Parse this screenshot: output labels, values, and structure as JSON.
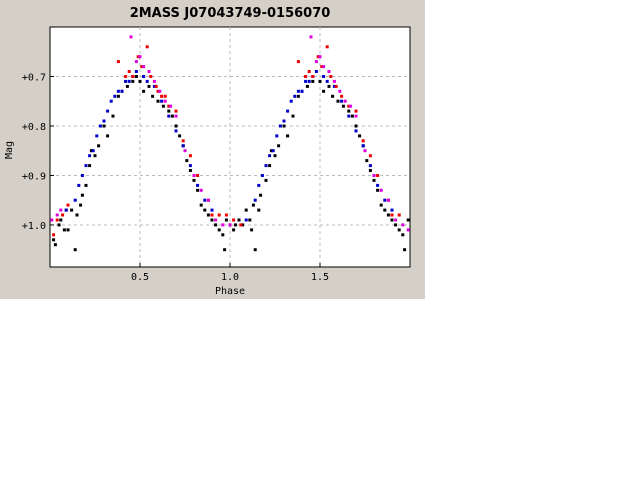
{
  "chart_data": {
    "type": "scatter",
    "title": "2MASS J07043749-0156070",
    "xlabel": "Phase",
    "ylabel": "Mag",
    "xlim": [
      0.0,
      2.0
    ],
    "ylim": [
      1.085,
      0.6
    ],
    "y_inverted": true,
    "grid": true,
    "x_ticks": [
      {
        "value": 0.5,
        "label": "0.5"
      },
      {
        "value": 1.0,
        "label": "1.0"
      },
      {
        "value": 1.5,
        "label": "1.5"
      }
    ],
    "y_ticks": [
      {
        "value": 0.7,
        "label": "+0.7"
      },
      {
        "value": 0.8,
        "label": "+0.8"
      },
      {
        "value": 0.9,
        "label": "+0.9"
      },
      {
        "value": 1.0,
        "label": "+1.0"
      }
    ],
    "series": [
      {
        "color": "#000000",
        "points": [
          [
            0.02,
            1.03
          ],
          [
            0.03,
            1.04
          ],
          [
            0.05,
            1.0
          ],
          [
            0.06,
            0.99
          ],
          [
            0.08,
            1.01
          ],
          [
            0.09,
            0.97
          ],
          [
            0.1,
            1.01
          ],
          [
            0.12,
            0.97
          ],
          [
            0.14,
            1.05
          ],
          [
            0.15,
            0.98
          ],
          [
            0.17,
            0.96
          ],
          [
            0.18,
            0.94
          ],
          [
            0.2,
            0.92
          ],
          [
            0.22,
            0.88
          ],
          [
            0.23,
            0.85
          ],
          [
            0.25,
            0.86
          ],
          [
            0.27,
            0.84
          ],
          [
            0.3,
            0.8
          ],
          [
            0.32,
            0.82
          ],
          [
            0.35,
            0.78
          ],
          [
            0.38,
            0.74
          ],
          [
            0.4,
            0.73
          ],
          [
            0.43,
            0.72
          ],
          [
            0.46,
            0.71
          ],
          [
            0.48,
            0.7
          ],
          [
            0.5,
            0.71
          ],
          [
            0.52,
            0.73
          ],
          [
            0.55,
            0.72
          ],
          [
            0.57,
            0.74
          ],
          [
            0.6,
            0.75
          ],
          [
            0.63,
            0.76
          ],
          [
            0.66,
            0.77
          ],
          [
            0.68,
            0.78
          ],
          [
            0.7,
            0.8
          ],
          [
            0.72,
            0.82
          ],
          [
            0.74,
            0.84
          ],
          [
            0.76,
            0.87
          ],
          [
            0.78,
            0.89
          ],
          [
            0.8,
            0.91
          ],
          [
            0.82,
            0.93
          ],
          [
            0.84,
            0.96
          ],
          [
            0.86,
            0.97
          ],
          [
            0.88,
            0.98
          ],
          [
            0.9,
            0.99
          ],
          [
            0.92,
            1.0
          ],
          [
            0.94,
            1.01
          ],
          [
            0.96,
            1.02
          ],
          [
            0.97,
            1.05
          ],
          [
            0.98,
            0.99
          ],
          [
            1.0,
            1.0
          ],
          [
            1.02,
            1.01
          ],
          [
            1.03,
            1.0
          ],
          [
            1.05,
            0.99
          ],
          [
            1.07,
            1.0
          ],
          [
            1.09,
            0.97
          ],
          [
            1.11,
            0.99
          ],
          [
            1.12,
            1.01
          ],
          [
            1.13,
            0.96
          ],
          [
            1.14,
            1.05
          ],
          [
            1.16,
            0.97
          ],
          [
            1.17,
            0.94
          ],
          [
            1.2,
            0.91
          ],
          [
            1.22,
            0.88
          ],
          [
            1.23,
            0.85
          ],
          [
            1.25,
            0.86
          ],
          [
            1.27,
            0.84
          ],
          [
            1.3,
            0.8
          ],
          [
            1.32,
            0.82
          ],
          [
            1.35,
            0.78
          ],
          [
            1.38,
            0.74
          ],
          [
            1.4,
            0.73
          ],
          [
            1.43,
            0.72
          ],
          [
            1.46,
            0.71
          ],
          [
            1.5,
            0.71
          ],
          [
            1.52,
            0.73
          ],
          [
            1.55,
            0.72
          ],
          [
            1.57,
            0.74
          ],
          [
            1.6,
            0.75
          ],
          [
            1.63,
            0.76
          ],
          [
            1.66,
            0.77
          ],
          [
            1.68,
            0.78
          ],
          [
            1.7,
            0.8
          ],
          [
            1.72,
            0.82
          ],
          [
            1.74,
            0.84
          ],
          [
            1.76,
            0.87
          ],
          [
            1.78,
            0.89
          ],
          [
            1.8,
            0.91
          ],
          [
            1.82,
            0.93
          ],
          [
            1.84,
            0.96
          ],
          [
            1.86,
            0.97
          ],
          [
            1.88,
            0.98
          ],
          [
            1.9,
            0.99
          ],
          [
            1.92,
            1.0
          ],
          [
            1.94,
            1.01
          ],
          [
            1.96,
            1.02
          ],
          [
            1.97,
            1.05
          ],
          [
            1.99,
            0.99
          ]
        ]
      },
      {
        "color": "#0000cc",
        "points": [
          [
            0.09,
            0.97
          ],
          [
            0.14,
            0.95
          ],
          [
            0.16,
            0.92
          ],
          [
            0.18,
            0.9
          ],
          [
            0.2,
            0.88
          ],
          [
            0.22,
            0.86
          ],
          [
            0.24,
            0.85
          ],
          [
            0.26,
            0.82
          ],
          [
            0.28,
            0.8
          ],
          [
            0.3,
            0.79
          ],
          [
            0.32,
            0.77
          ],
          [
            0.34,
            0.75
          ],
          [
            0.36,
            0.74
          ],
          [
            0.38,
            0.73
          ],
          [
            0.4,
            0.73
          ],
          [
            0.42,
            0.71
          ],
          [
            0.44,
            0.71
          ],
          [
            0.46,
            0.7
          ],
          [
            0.48,
            0.69
          ],
          [
            0.52,
            0.7
          ],
          [
            0.54,
            0.71
          ],
          [
            0.58,
            0.72
          ],
          [
            0.62,
            0.75
          ],
          [
            0.66,
            0.78
          ],
          [
            0.7,
            0.81
          ],
          [
            0.74,
            0.84
          ],
          [
            0.78,
            0.88
          ],
          [
            0.82,
            0.92
          ],
          [
            0.86,
            0.95
          ],
          [
            0.9,
            0.97
          ],
          [
            1.09,
            0.99
          ],
          [
            1.14,
            0.95
          ],
          [
            1.16,
            0.92
          ],
          [
            1.18,
            0.9
          ],
          [
            1.2,
            0.88
          ],
          [
            1.22,
            0.86
          ],
          [
            1.24,
            0.85
          ],
          [
            1.26,
            0.82
          ],
          [
            1.28,
            0.8
          ],
          [
            1.3,
            0.79
          ],
          [
            1.32,
            0.77
          ],
          [
            1.34,
            0.75
          ],
          [
            1.36,
            0.74
          ],
          [
            1.38,
            0.73
          ],
          [
            1.4,
            0.73
          ],
          [
            1.42,
            0.71
          ],
          [
            1.44,
            0.71
          ],
          [
            1.46,
            0.7
          ],
          [
            1.48,
            0.69
          ],
          [
            1.52,
            0.7
          ],
          [
            1.54,
            0.71
          ],
          [
            1.58,
            0.72
          ],
          [
            1.62,
            0.75
          ],
          [
            1.66,
            0.78
          ],
          [
            1.7,
            0.81
          ],
          [
            1.74,
            0.84
          ],
          [
            1.78,
            0.88
          ],
          [
            1.82,
            0.92
          ],
          [
            1.86,
            0.95
          ],
          [
            1.9,
            0.97
          ]
        ]
      },
      {
        "color": "#ee0000",
        "points": [
          [
            0.02,
            1.02
          ],
          [
            0.04,
            0.99
          ],
          [
            0.07,
            0.98
          ],
          [
            0.1,
            0.96
          ],
          [
            0.38,
            0.67
          ],
          [
            0.42,
            0.7
          ],
          [
            0.44,
            0.69
          ],
          [
            0.46,
            0.7
          ],
          [
            0.49,
            0.66
          ],
          [
            0.51,
            0.68
          ],
          [
            0.54,
            0.64
          ],
          [
            0.56,
            0.7
          ],
          [
            0.59,
            0.72
          ],
          [
            0.6,
            0.73
          ],
          [
            0.62,
            0.74
          ],
          [
            0.64,
            0.74
          ],
          [
            0.66,
            0.76
          ],
          [
            0.7,
            0.77
          ],
          [
            0.74,
            0.83
          ],
          [
            0.78,
            0.86
          ],
          [
            0.82,
            0.9
          ],
          [
            0.88,
            0.95
          ],
          [
            0.9,
            0.98
          ],
          [
            0.94,
            0.98
          ],
          [
            0.98,
            0.98
          ],
          [
            1.02,
            0.99
          ],
          [
            1.06,
            1.0
          ],
          [
            1.38,
            0.67
          ],
          [
            1.42,
            0.7
          ],
          [
            1.44,
            0.69
          ],
          [
            1.46,
            0.7
          ],
          [
            1.49,
            0.66
          ],
          [
            1.51,
            0.68
          ],
          [
            1.54,
            0.64
          ],
          [
            1.56,
            0.7
          ],
          [
            1.59,
            0.72
          ],
          [
            1.62,
            0.74
          ],
          [
            1.66,
            0.76
          ],
          [
            1.7,
            0.77
          ],
          [
            1.74,
            0.83
          ],
          [
            1.78,
            0.86
          ],
          [
            1.82,
            0.9
          ],
          [
            1.88,
            0.95
          ],
          [
            1.9,
            0.98
          ],
          [
            1.94,
            0.98
          ]
        ]
      },
      {
        "color": "#dd00dd",
        "points": [
          [
            0.01,
            0.99
          ],
          [
            0.04,
            0.98
          ],
          [
            0.06,
            0.97
          ],
          [
            0.45,
            0.62
          ],
          [
            0.48,
            0.67
          ],
          [
            0.5,
            0.66
          ],
          [
            0.52,
            0.68
          ],
          [
            0.55,
            0.69
          ],
          [
            0.58,
            0.71
          ],
          [
            0.61,
            0.73
          ],
          [
            0.64,
            0.75
          ],
          [
            0.67,
            0.76
          ],
          [
            0.7,
            0.78
          ],
          [
            0.75,
            0.85
          ],
          [
            0.8,
            0.9
          ],
          [
            0.84,
            0.93
          ],
          [
            0.88,
            0.95
          ],
          [
            0.92,
            0.99
          ],
          [
            0.96,
            1.0
          ],
          [
            1.0,
            1.0
          ],
          [
            1.45,
            0.62
          ],
          [
            1.48,
            0.67
          ],
          [
            1.5,
            0.66
          ],
          [
            1.52,
            0.68
          ],
          [
            1.55,
            0.69
          ],
          [
            1.58,
            0.71
          ],
          [
            1.61,
            0.73
          ],
          [
            1.64,
            0.75
          ],
          [
            1.67,
            0.76
          ],
          [
            1.7,
            0.78
          ],
          [
            1.75,
            0.85
          ],
          [
            1.8,
            0.9
          ],
          [
            1.84,
            0.93
          ],
          [
            1.88,
            0.95
          ],
          [
            1.92,
            0.99
          ],
          [
            1.96,
            1.0
          ],
          [
            1.99,
            1.01
          ]
        ]
      }
    ]
  }
}
